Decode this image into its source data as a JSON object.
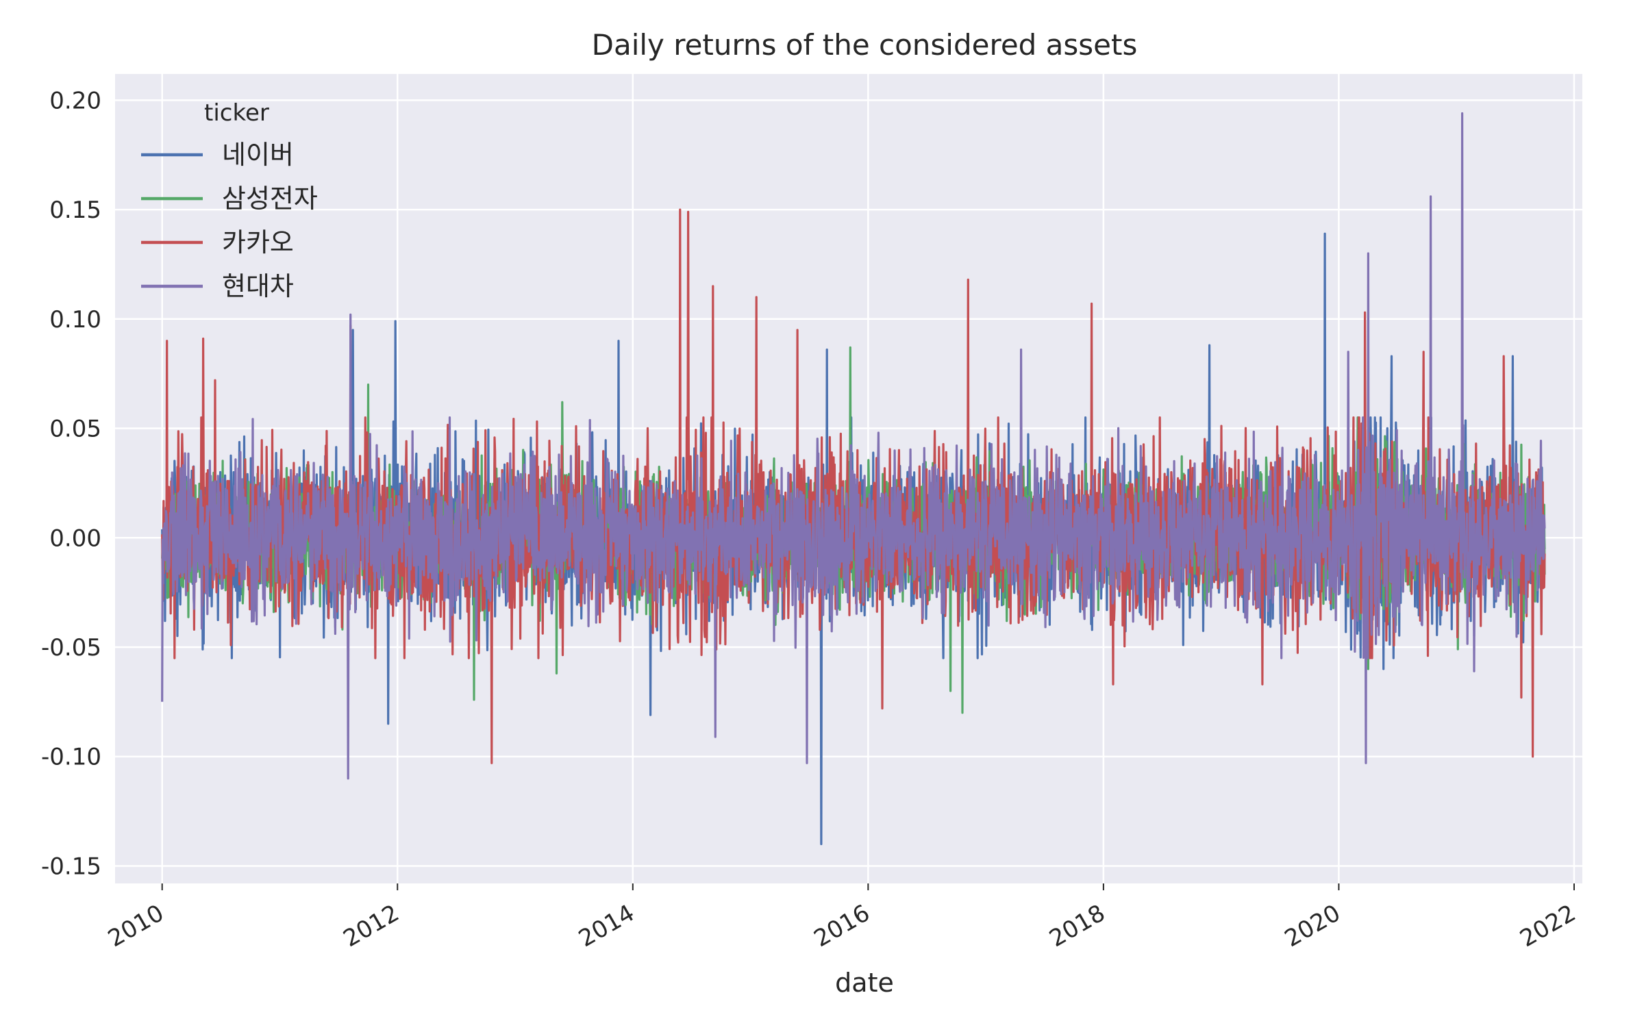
{
  "chart_data": {
    "type": "line",
    "title": "Daily returns of the considered assets",
    "xlabel": "date",
    "ylabel": "",
    "ylim": [
      -0.158,
      0.212
    ],
    "xlim": [
      2009.6,
      2022.07
    ],
    "x_ticks": [
      2010,
      2012,
      2014,
      2016,
      2018,
      2020,
      2022
    ],
    "x_tick_labels": [
      "2010",
      "2012",
      "2014",
      "2016",
      "2018",
      "2020",
      "2022"
    ],
    "y_ticks": [
      0.2,
      0.15,
      0.1,
      0.05,
      0.0,
      -0.05,
      -0.1,
      -0.15
    ],
    "y_tick_labels": [
      "0.20",
      "0.15",
      "0.10",
      "0.05",
      "0.00",
      "-0.05",
      "-0.10",
      "-0.15"
    ],
    "grid": true,
    "background": "#eaeaf2",
    "legend": {
      "title": "ticker",
      "placement": "top-left"
    },
    "x_range": [
      2010.0,
      2021.75
    ],
    "series": [
      {
        "name": "네이버",
        "color": "#4c72b0",
        "volatility": 0.021,
        "extremes": [
          {
            "x": 2011.62,
            "y": 0.095
          },
          {
            "x": 2011.98,
            "y": 0.099
          },
          {
            "x": 2011.92,
            "y": -0.085
          },
          {
            "x": 2013.88,
            "y": 0.09
          },
          {
            "x": 2014.15,
            "y": -0.081
          },
          {
            "x": 2015.65,
            "y": 0.086
          },
          {
            "x": 2015.6,
            "y": -0.14
          },
          {
            "x": 2018.9,
            "y": 0.088
          },
          {
            "x": 2019.88,
            "y": 0.139
          },
          {
            "x": 2020.45,
            "y": 0.083
          },
          {
            "x": 2021.48,
            "y": 0.083
          },
          {
            "x": 2020.38,
            "y": -0.06
          }
        ]
      },
      {
        "name": "삼성전자",
        "color": "#55a868",
        "volatility": 0.016,
        "extremes": [
          {
            "x": 2011.75,
            "y": 0.07
          },
          {
            "x": 2013.4,
            "y": 0.062
          },
          {
            "x": 2015.85,
            "y": 0.087
          },
          {
            "x": 2012.65,
            "y": -0.074
          },
          {
            "x": 2013.35,
            "y": -0.062
          },
          {
            "x": 2016.8,
            "y": -0.08
          },
          {
            "x": 2016.7,
            "y": -0.07
          },
          {
            "x": 2020.25,
            "y": -0.06
          }
        ]
      },
      {
        "name": "카카오",
        "color": "#c44e52",
        "volatility": 0.022,
        "extremes": [
          {
            "x": 2010.04,
            "y": 0.09
          },
          {
            "x": 2010.35,
            "y": 0.091
          },
          {
            "x": 2010.45,
            "y": 0.072
          },
          {
            "x": 2011.6,
            "y": 0.097
          },
          {
            "x": 2012.8,
            "y": -0.103
          },
          {
            "x": 2014.4,
            "y": 0.15
          },
          {
            "x": 2014.47,
            "y": 0.149
          },
          {
            "x": 2014.68,
            "y": 0.115
          },
          {
            "x": 2015.05,
            "y": 0.11
          },
          {
            "x": 2015.4,
            "y": 0.095
          },
          {
            "x": 2016.12,
            "y": -0.078
          },
          {
            "x": 2016.85,
            "y": 0.118
          },
          {
            "x": 2017.9,
            "y": 0.107
          },
          {
            "x": 2018.08,
            "y": -0.067
          },
          {
            "x": 2019.35,
            "y": -0.067
          },
          {
            "x": 2020.22,
            "y": 0.103
          },
          {
            "x": 2020.72,
            "y": 0.085
          },
          {
            "x": 2021.65,
            "y": -0.1
          },
          {
            "x": 2021.4,
            "y": 0.083
          },
          {
            "x": 2021.55,
            "y": -0.073
          }
        ]
      },
      {
        "name": "현대차",
        "color": "#8172b2",
        "volatility": 0.019,
        "extremes": [
          {
            "x": 2010.0,
            "y": -0.075
          },
          {
            "x": 2011.6,
            "y": 0.102
          },
          {
            "x": 2011.58,
            "y": -0.11
          },
          {
            "x": 2014.7,
            "y": -0.091
          },
          {
            "x": 2015.48,
            "y": -0.103
          },
          {
            "x": 2017.3,
            "y": 0.086
          },
          {
            "x": 2020.25,
            "y": 0.13
          },
          {
            "x": 2020.23,
            "y": -0.103
          },
          {
            "x": 2020.78,
            "y": 0.156
          },
          {
            "x": 2021.05,
            "y": 0.194
          },
          {
            "x": 2020.08,
            "y": 0.085
          },
          {
            "x": 2021.15,
            "y": -0.061
          }
        ]
      }
    ]
  }
}
